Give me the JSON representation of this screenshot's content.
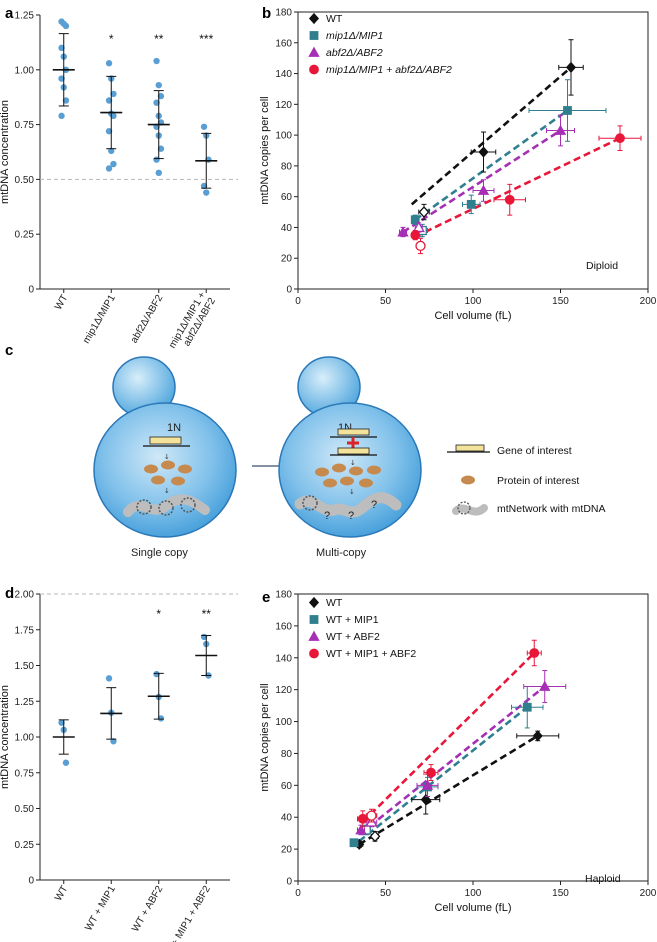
{
  "panel_labels": {
    "a": "a",
    "b": "b",
    "c": "c",
    "d": "d",
    "e": "e"
  },
  "colors": {
    "wt": "#111111",
    "mip1": "#2f7f8f",
    "abf2": "#a62fb5",
    "both": "#e8173a",
    "dots": "#5a9fd4"
  },
  "chart_data": [
    {
      "panel": "a",
      "type": "scatter",
      "ylabel": "mtDNA concentration",
      "ylim": [
        0,
        1.25
      ],
      "yticks": [
        "0",
        "0.25",
        "0.50",
        "0.75",
        "1.00",
        "1.25"
      ],
      "reference_line": 0.5,
      "categories": [
        "WT",
        "mip1Δ/MIP1",
        "abf2Δ/ABF2",
        "mip1Δ/MIP1 + abf2Δ/ABF2"
      ],
      "category_lines": [
        [
          "WT"
        ],
        [
          "mip1Δ/MIP1"
        ],
        [
          "abf2Δ/ABF2"
        ],
        [
          "mip1Δ/MIP1 +",
          "abf2Δ/ABF2"
        ]
      ],
      "significance": [
        "",
        "*",
        "**",
        "***"
      ],
      "means": [
        1.0,
        0.805,
        0.75,
        0.585
      ],
      "sd": [
        0.165,
        0.165,
        0.155,
        0.125
      ],
      "points": [
        [
          1.22,
          1.21,
          1.2,
          1.1,
          1.06,
          1.0,
          0.96,
          0.92,
          0.86,
          0.79
        ],
        [
          1.03,
          0.96,
          0.89,
          0.86,
          0.8,
          0.79,
          0.72,
          0.63,
          0.57,
          0.55
        ],
        [
          1.04,
          0.93,
          0.88,
          0.85,
          0.79,
          0.76,
          0.74,
          0.7,
          0.64,
          0.59,
          0.53
        ],
        [
          0.74,
          0.7,
          0.59,
          0.47,
          0.44
        ]
      ]
    },
    {
      "panel": "b",
      "type": "scatter",
      "xlabel": "Cell volume (fL)",
      "ylabel": "mtDNA copies per cell",
      "xlim": [
        0,
        200
      ],
      "ylim": [
        0,
        180
      ],
      "xticks": [
        "0",
        "50",
        "100",
        "150",
        "200"
      ],
      "yticks": [
        "0",
        "20",
        "40",
        "60",
        "80",
        "100",
        "120",
        "140",
        "160",
        "180"
      ],
      "annotation": "Diploid",
      "series": [
        {
          "name": "WT",
          "italic": false,
          "color_key": "wt",
          "marker": "diamond",
          "points": [
            {
              "x": 72,
              "y": 50,
              "xe": 3,
              "ye": 5,
              "open": true
            },
            {
              "x": 106,
              "y": 89,
              "xe": 7,
              "ye": 13
            },
            {
              "x": 156,
              "y": 144,
              "xe": 7,
              "ye": 18
            }
          ],
          "line": [
            [
              65,
              55
            ],
            [
              156,
              144
            ]
          ]
        },
        {
          "name": "mip1Δ/MIP1",
          "italic": true,
          "color_key": "mip1",
          "marker": "square",
          "points": [
            {
              "x": 67,
              "y": 45,
              "xe": 2,
              "ye": 3
            },
            {
              "x": 71,
              "y": 38,
              "xe": 3,
              "ye": 4,
              "open": true
            },
            {
              "x": 99,
              "y": 55,
              "xe": 5,
              "ye": 6
            },
            {
              "x": 154,
              "y": 116,
              "xe": 22,
              "ye": 20
            }
          ],
          "line": [
            [
              67,
              45
            ],
            [
              154,
              116
            ]
          ]
        },
        {
          "name": "abf2Δ/ABF2",
          "italic": true,
          "color_key": "abf2",
          "marker": "triangle",
          "points": [
            {
              "x": 60,
              "y": 37,
              "xe": 2,
              "ye": 3
            },
            {
              "x": 69,
              "y": 40,
              "xe": 2,
              "ye": 3,
              "open": true
            },
            {
              "x": 106,
              "y": 64,
              "xe": 6,
              "ye": 7
            },
            {
              "x": 150,
              "y": 103,
              "xe": 8,
              "ye": 10
            }
          ],
          "line": [
            [
              60,
              37
            ],
            [
              150,
              103
            ]
          ]
        },
        {
          "name": "mip1Δ/MIP1 + abf2Δ/ABF2",
          "italic": true,
          "color_key": "both",
          "marker": "circle",
          "points": [
            {
              "x": 67,
              "y": 35,
              "xe": 2,
              "ye": 3
            },
            {
              "x": 70,
              "y": 28,
              "xe": 2,
              "ye": 5,
              "open": true
            },
            {
              "x": 121,
              "y": 58,
              "xe": 9,
              "ye": 10
            },
            {
              "x": 184,
              "y": 98,
              "xe": 12,
              "ye": 8
            }
          ],
          "line": [
            [
              67,
              34
            ],
            [
              184,
              98
            ]
          ]
        }
      ]
    },
    {
      "panel": "d",
      "type": "scatter",
      "ylabel": "mtDNA concentration",
      "ylim": [
        0,
        2.0
      ],
      "yticks": [
        "0",
        "0.25",
        "0.50",
        "0.75",
        "1.00",
        "1.25",
        "1.50",
        "1.75",
        "2.00"
      ],
      "reference_line": 2.0,
      "categories": [
        "WT",
        "WT + MIP1",
        "WT + ABF2",
        "WT + MIP1 + ABF2"
      ],
      "significance": [
        "",
        "",
        "*",
        "**"
      ],
      "means": [
        1.0,
        1.165,
        1.285,
        1.57
      ],
      "sd": [
        0.12,
        0.18,
        0.16,
        0.14
      ],
      "points": [
        [
          1.1,
          1.05,
          0.82
        ],
        [
          1.41,
          1.17,
          0.97
        ],
        [
          1.44,
          1.28,
          1.13
        ],
        [
          1.7,
          1.65,
          1.43
        ]
      ]
    },
    {
      "panel": "e",
      "type": "scatter",
      "xlabel": "Cell volume (fL)",
      "ylabel": "mtDNA copies per cell",
      "xlim": [
        0,
        200
      ],
      "ylim": [
        0,
        180
      ],
      "xticks": [
        "0",
        "50",
        "100",
        "150",
        "200"
      ],
      "yticks": [
        "0",
        "20",
        "40",
        "60",
        "80",
        "100",
        "120",
        "140",
        "160",
        "180"
      ],
      "annotation": "Haploid",
      "series": [
        {
          "name": "WT",
          "color_key": "wt",
          "marker": "diamond",
          "points": [
            {
              "x": 35,
              "y": 23,
              "xe": 2,
              "ye": 2
            },
            {
              "x": 44,
              "y": 28,
              "xe": 2,
              "ye": 3,
              "open": true
            },
            {
              "x": 73,
              "y": 51,
              "xe": 8,
              "ye": 9
            },
            {
              "x": 137,
              "y": 91,
              "xe": 12,
              "ye": 3
            }
          ],
          "line": [
            [
              35,
              23
            ],
            [
              137,
              91
            ]
          ]
        },
        {
          "name": "WT + MIP1",
          "color_key": "mip1",
          "marker": "square",
          "points": [
            {
              "x": 32,
              "y": 24,
              "xe": 2,
              "ye": 2
            },
            {
              "x": 39,
              "y": 32,
              "xe": 2,
              "ye": 3,
              "open": true
            },
            {
              "x": 74,
              "y": 59,
              "xe": 6,
              "ye": 6
            },
            {
              "x": 131,
              "y": 109,
              "xe": 9,
              "ye": 13
            }
          ],
          "line": [
            [
              35,
              25
            ],
            [
              131,
              109
            ]
          ]
        },
        {
          "name": "WT + ABF2",
          "color_key": "abf2",
          "marker": "triangle",
          "points": [
            {
              "x": 36,
              "y": 32,
              "xe": 2,
              "ye": 3
            },
            {
              "x": 42,
              "y": 37,
              "xe": 3,
              "ye": 3,
              "open": true
            },
            {
              "x": 74,
              "y": 60,
              "xe": 6,
              "ye": 7
            },
            {
              "x": 141,
              "y": 122,
              "xe": 12,
              "ye": 10
            }
          ],
          "line": [
            [
              36,
              30
            ],
            [
              141,
              122
            ]
          ]
        },
        {
          "name": "WT + MIP1 + ABF2",
          "color_key": "both",
          "marker": "circle",
          "points": [
            {
              "x": 37,
              "y": 39,
              "xe": 3,
              "ye": 5
            },
            {
              "x": 42,
              "y": 41,
              "xe": 3,
              "ye": 4,
              "open": true
            },
            {
              "x": 76,
              "y": 68,
              "xe": 4,
              "ye": 5
            },
            {
              "x": 135,
              "y": 143,
              "xe": 4,
              "ye": 8
            }
          ],
          "line": [
            [
              37,
              37
            ],
            [
              135,
              143
            ]
          ]
        }
      ]
    }
  ],
  "schematic": {
    "left_label": "1N",
    "right_label": "1N",
    "question_marks": [
      "?",
      "?",
      "?"
    ],
    "captions": {
      "single": "Single copy",
      "multi": "Multi-copy"
    },
    "legend": [
      "Gene of interest",
      "Protein of interest",
      "mtNetwork with mtDNA"
    ]
  }
}
